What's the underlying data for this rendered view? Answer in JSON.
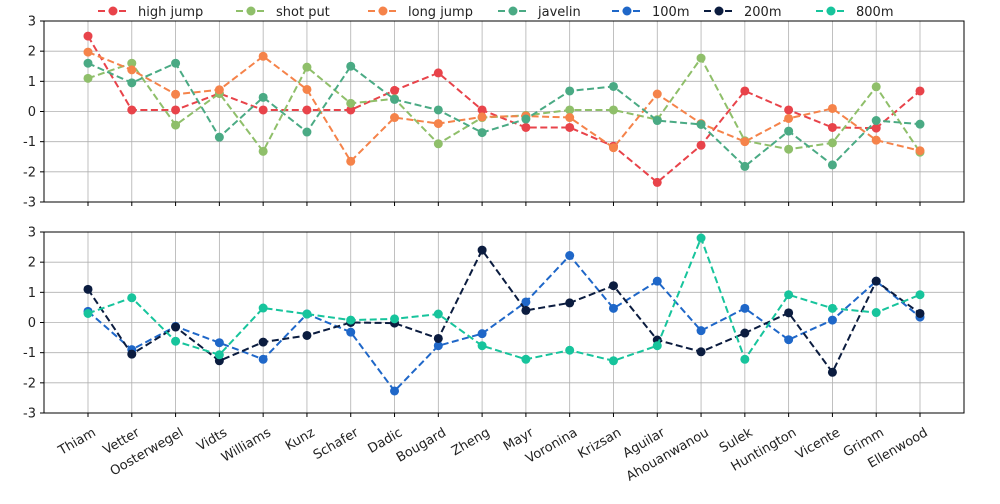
{
  "chart_data": [
    {
      "type": "line",
      "categories": [
        "Thiam",
        "Vetter",
        "Oosterwegel",
        "Vidts",
        "Williams",
        "Kunz",
        "Schafer",
        "Dadic",
        "Bougard",
        "Zheng",
        "Mayr",
        "Voronina",
        "Krizsan",
        "Aguilar",
        "Ahouanwanou",
        "Sulek",
        "Huntington",
        "Vicente",
        "Grimm",
        "Ellenwood"
      ],
      "ylim": [
        -3,
        3
      ],
      "yticks": [
        -3,
        -2,
        -1,
        0,
        1,
        2,
        3
      ],
      "grid": true,
      "legend": "top",
      "series": [
        {
          "name": "high jump",
          "color": "#e8434a",
          "values": [
            2.5,
            0.05,
            0.05,
            0.6,
            0.05,
            0.05,
            0.05,
            0.7,
            1.28,
            0.05,
            -0.53,
            -0.53,
            -1.15,
            -2.35,
            -1.12,
            0.68,
            0.05,
            -0.53,
            -0.55,
            0.68
          ]
        },
        {
          "name": "shot put",
          "color": "#8fbf6a",
          "values": [
            1.1,
            1.6,
            -0.45,
            0.6,
            -1.32,
            1.47,
            0.27,
            0.42,
            -1.07,
            -0.2,
            -0.13,
            0.05,
            0.05,
            -0.27,
            1.77,
            -0.97,
            -1.25,
            -1.04,
            0.82,
            -1.35
          ]
        },
        {
          "name": "long jump",
          "color": "#f5834a",
          "values": [
            1.97,
            1.38,
            0.57,
            0.72,
            1.83,
            0.73,
            -1.65,
            -0.2,
            -0.4,
            -0.18,
            -0.15,
            -0.2,
            -1.2,
            0.58,
            -0.4,
            -1.0,
            -0.23,
            0.1,
            -0.95,
            -1.3
          ]
        },
        {
          "name": "javelin",
          "color": "#4aaa84",
          "values": [
            1.6,
            0.95,
            1.6,
            -0.85,
            0.47,
            -0.68,
            1.5,
            0.4,
            0.05,
            -0.7,
            -0.25,
            0.68,
            0.83,
            -0.3,
            -0.43,
            -1.82,
            -0.65,
            -1.77,
            -0.3,
            -0.42
          ]
        }
      ]
    },
    {
      "type": "line",
      "categories": [
        "Thiam",
        "Vetter",
        "Oosterwegel",
        "Vidts",
        "Williams",
        "Kunz",
        "Schafer",
        "Dadic",
        "Bougard",
        "Zheng",
        "Mayr",
        "Voronina",
        "Krizsan",
        "Aguilar",
        "Ahouanwanou",
        "Sulek",
        "Huntington",
        "Vicente",
        "Grimm",
        "Ellenwood"
      ],
      "ylim": [
        -3,
        3
      ],
      "yticks": [
        -3,
        -2,
        -1,
        0,
        1,
        2,
        3
      ],
      "grid": true,
      "series": [
        {
          "name": "100m",
          "color": "#1f67c8",
          "values": [
            0.37,
            -0.9,
            -0.13,
            -0.67,
            -1.22,
            0.28,
            -0.32,
            -2.27,
            -0.77,
            -0.37,
            0.68,
            2.22,
            0.47,
            1.37,
            -0.27,
            0.47,
            -0.57,
            0.08,
            1.37,
            0.18
          ]
        },
        {
          "name": "200m",
          "color": "#0b1c3f",
          "values": [
            1.1,
            -1.05,
            -0.15,
            -1.27,
            -0.65,
            -0.43,
            0.0,
            -0.02,
            -0.53,
            2.4,
            0.4,
            0.65,
            1.22,
            -0.58,
            -0.97,
            -0.35,
            0.32,
            -1.65,
            1.37,
            0.3
          ]
        },
        {
          "name": "800m",
          "color": "#17c49c",
          "values": [
            0.3,
            0.82,
            -0.62,
            -1.07,
            0.48,
            0.28,
            0.08,
            0.12,
            0.28,
            -0.77,
            -1.22,
            -0.92,
            -1.27,
            -0.77,
            2.8,
            -1.22,
            0.92,
            0.47,
            0.33,
            0.92
          ]
        }
      ]
    }
  ]
}
